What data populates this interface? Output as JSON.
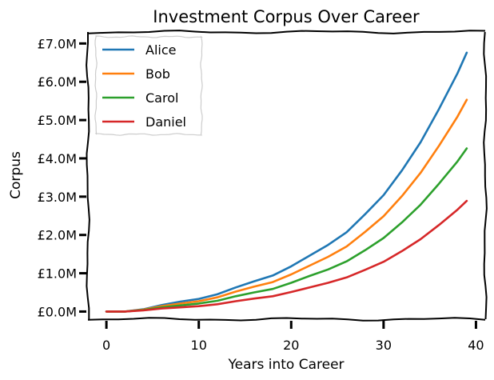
{
  "chart_data": {
    "type": "line",
    "title": "Investment Corpus Over Career",
    "xlabel": "Years into Career",
    "ylabel": "Corpus",
    "xlim": [
      -2,
      41
    ],
    "ylim": [
      -0.2,
      7.3
    ],
    "x_ticks": [
      0,
      10,
      20,
      30,
      40
    ],
    "x_tick_labels": [
      "0",
      "10",
      "20",
      "30",
      "40"
    ],
    "y_ticks": [
      0,
      1,
      2,
      3,
      4,
      5,
      6,
      7
    ],
    "y_tick_labels": [
      "£0.0M",
      "£1.0M",
      "£2.0M",
      "£3.0M",
      "£4.0M",
      "£5.0M",
      "£6.0M",
      "£7.0M"
    ],
    "grid": false,
    "legend_position": "top-left",
    "x": [
      0,
      2,
      4,
      6,
      8,
      10,
      12,
      14,
      16,
      18,
      20,
      22,
      24,
      26,
      28,
      30,
      32,
      34,
      36,
      38,
      39
    ],
    "series": [
      {
        "name": "Alice",
        "color": "#1f77b4",
        "values": [
          0,
          0,
          0.06,
          0.17,
          0.26,
          0.33,
          0.45,
          0.63,
          0.79,
          0.94,
          1.18,
          1.46,
          1.74,
          2.07,
          2.54,
          3.04,
          3.69,
          4.42,
          5.29,
          6.22,
          6.76
        ]
      },
      {
        "name": "Bob",
        "color": "#ff7f0e",
        "values": [
          0,
          0,
          0.05,
          0.14,
          0.21,
          0.27,
          0.37,
          0.52,
          0.65,
          0.77,
          0.97,
          1.2,
          1.43,
          1.7,
          2.08,
          2.49,
          3.02,
          3.62,
          4.33,
          5.09,
          5.53
        ]
      },
      {
        "name": "Carol",
        "color": "#2ca02c",
        "values": [
          0,
          0,
          0.04,
          0.11,
          0.16,
          0.21,
          0.28,
          0.4,
          0.5,
          0.59,
          0.75,
          0.93,
          1.1,
          1.31,
          1.6,
          1.92,
          2.33,
          2.79,
          3.34,
          3.92,
          4.26
        ]
      },
      {
        "name": "Daniel",
        "color": "#d62728",
        "values": [
          0,
          0,
          0.03,
          0.08,
          0.11,
          0.14,
          0.19,
          0.27,
          0.34,
          0.4,
          0.51,
          0.63,
          0.75,
          0.89,
          1.09,
          1.3,
          1.58,
          1.89,
          2.26,
          2.66,
          2.89
        ]
      }
    ]
  }
}
